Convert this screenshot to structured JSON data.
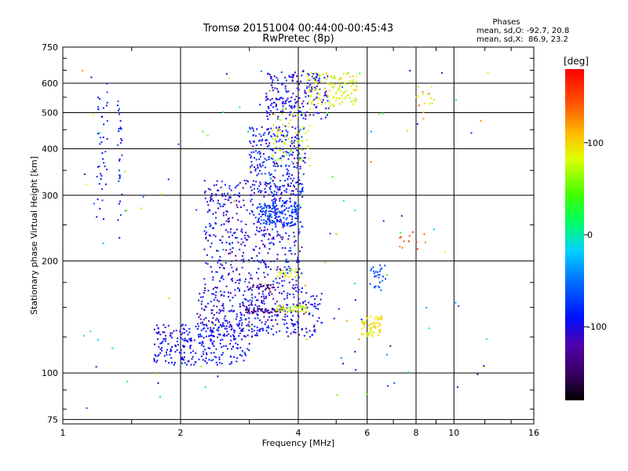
{
  "chart_data": {
    "type": "scatter",
    "title": "Tromsø 20151004 00:44:00-00:45:43",
    "subtitle": "RwPretec (8p)",
    "xlabel": "Frequency [MHz]",
    "ylabel": "Stationary phase Virtual Height [km]",
    "x_scale": "log2",
    "y_scale": "log",
    "xlim": [
      1,
      16
    ],
    "ylim": [
      73,
      750
    ],
    "x_ticks": [
      1,
      2,
      4,
      6,
      8,
      10,
      16
    ],
    "x_tick_labels": [
      "1",
      "2",
      "4",
      "6",
      "8",
      "10",
      "16"
    ],
    "y_ticks": [
      75,
      100,
      200,
      300,
      400,
      500,
      600,
      750
    ],
    "y_tick_labels": [
      "75",
      "100",
      "200",
      "300",
      "400",
      "500",
      "600",
      "750"
    ],
    "grid": true,
    "stats": {
      "title": "Phases",
      "line_o": "mean, sd,O: -92.7, 20.8",
      "line_x": "mean, sd,X:  86.9, 23.2"
    },
    "colorbar": {
      "label": "[deg]",
      "range": [
        -180,
        180
      ],
      "tick_values": [
        100,
        0,
        -100
      ],
      "tick_labels": [
        "100",
        "0",
        "-100"
      ]
    },
    "clusters": [
      {
        "desc": "E layer blue band",
        "x": [
          1.7,
          3.0
        ],
        "y": [
          105,
          135
        ],
        "phase": [
          -110,
          -80
        ],
        "n": 260
      },
      {
        "desc": "lower F blue band",
        "x": [
          2.2,
          4.6
        ],
        "y": [
          125,
          165
        ],
        "phase": [
          -125,
          -75
        ],
        "n": 360
      },
      {
        "desc": "purple trace 147 km",
        "x": [
          2.9,
          3.6
        ],
        "y": [
          145,
          149
        ],
        "phase": [
          -145,
          -130
        ],
        "n": 40
      },
      {
        "desc": "purple trace 170 km",
        "x": [
          3.0,
          3.5
        ],
        "y": [
          168,
          173
        ],
        "phase": [
          -140,
          -125
        ],
        "n": 25
      },
      {
        "desc": "yellow-green trace",
        "x": [
          3.5,
          4.2
        ],
        "y": [
          145,
          152
        ],
        "phase": [
          60,
          100
        ],
        "n": 45
      },
      {
        "desc": "yellow-green 185 km",
        "x": [
          3.5,
          4.0
        ],
        "y": [
          180,
          190
        ],
        "phase": [
          60,
          100
        ],
        "n": 25
      },
      {
        "desc": "F1 blue blob",
        "x": [
          2.3,
          4.1
        ],
        "y": [
          165,
          330
        ],
        "phase": [
          -130,
          -70
        ],
        "n": 520
      },
      {
        "desc": "F2 cyan cluster",
        "x": [
          3.2,
          4.0
        ],
        "y": [
          250,
          290
        ],
        "phase": [
          -85,
          -55
        ],
        "n": 150
      },
      {
        "desc": "F2 upper trace",
        "x": [
          3.0,
          4.2
        ],
        "y": [
          300,
          460
        ],
        "phase": [
          -120,
          -60
        ],
        "n": 260
      },
      {
        "desc": "F2 high trace",
        "x": [
          3.3,
          4.8
        ],
        "y": [
          480,
          650
        ],
        "phase": [
          -120,
          -75
        ],
        "n": 200
      },
      {
        "desc": "X-mode yellow high",
        "x": [
          4.2,
          5.7
        ],
        "y": [
          520,
          640
        ],
        "phase": [
          60,
          110
        ],
        "n": 120
      },
      {
        "desc": "yellow-green mid",
        "x": [
          3.4,
          4.3
        ],
        "y": [
          360,
          520
        ],
        "phase": [
          50,
          100
        ],
        "n": 70
      },
      {
        "desc": "yellow patch 6 MHz",
        "x": [
          5.8,
          6.6
        ],
        "y": [
          125,
          142
        ],
        "phase": [
          70,
          110
        ],
        "n": 70
      },
      {
        "desc": "cyan trace 6.5 MHz",
        "x": [
          6.1,
          6.7
        ],
        "y": [
          165,
          195
        ],
        "phase": [
          -75,
          -55
        ],
        "n": 30
      },
      {
        "desc": "column 1.25 MHz",
        "x": [
          1.22,
          1.3
        ],
        "y": [
          250,
          600
        ],
        "phase": [
          -110,
          -60
        ],
        "n": 40
      },
      {
        "desc": "column 1.4 MHz",
        "x": [
          1.38,
          1.42
        ],
        "y": [
          210,
          580
        ],
        "phase": [
          -110,
          -60
        ],
        "n": 30
      },
      {
        "desc": "orange spots 7.5 MHz",
        "x": [
          7.2,
          8.5
        ],
        "y": [
          215,
          240
        ],
        "phase": [
          130,
          160
        ],
        "n": 12
      },
      {
        "desc": "scatter 8-9 MHz",
        "x": [
          8.0,
          9.0
        ],
        "y": [
          490,
          610
        ],
        "phase": [
          70,
          140
        ],
        "n": 15
      },
      {
        "desc": "sparse noise",
        "x": [
          1.1,
          12.5
        ],
        "y": [
          78,
          650
        ],
        "phase": [
          -140,
          140
        ],
        "n": 120
      }
    ]
  }
}
